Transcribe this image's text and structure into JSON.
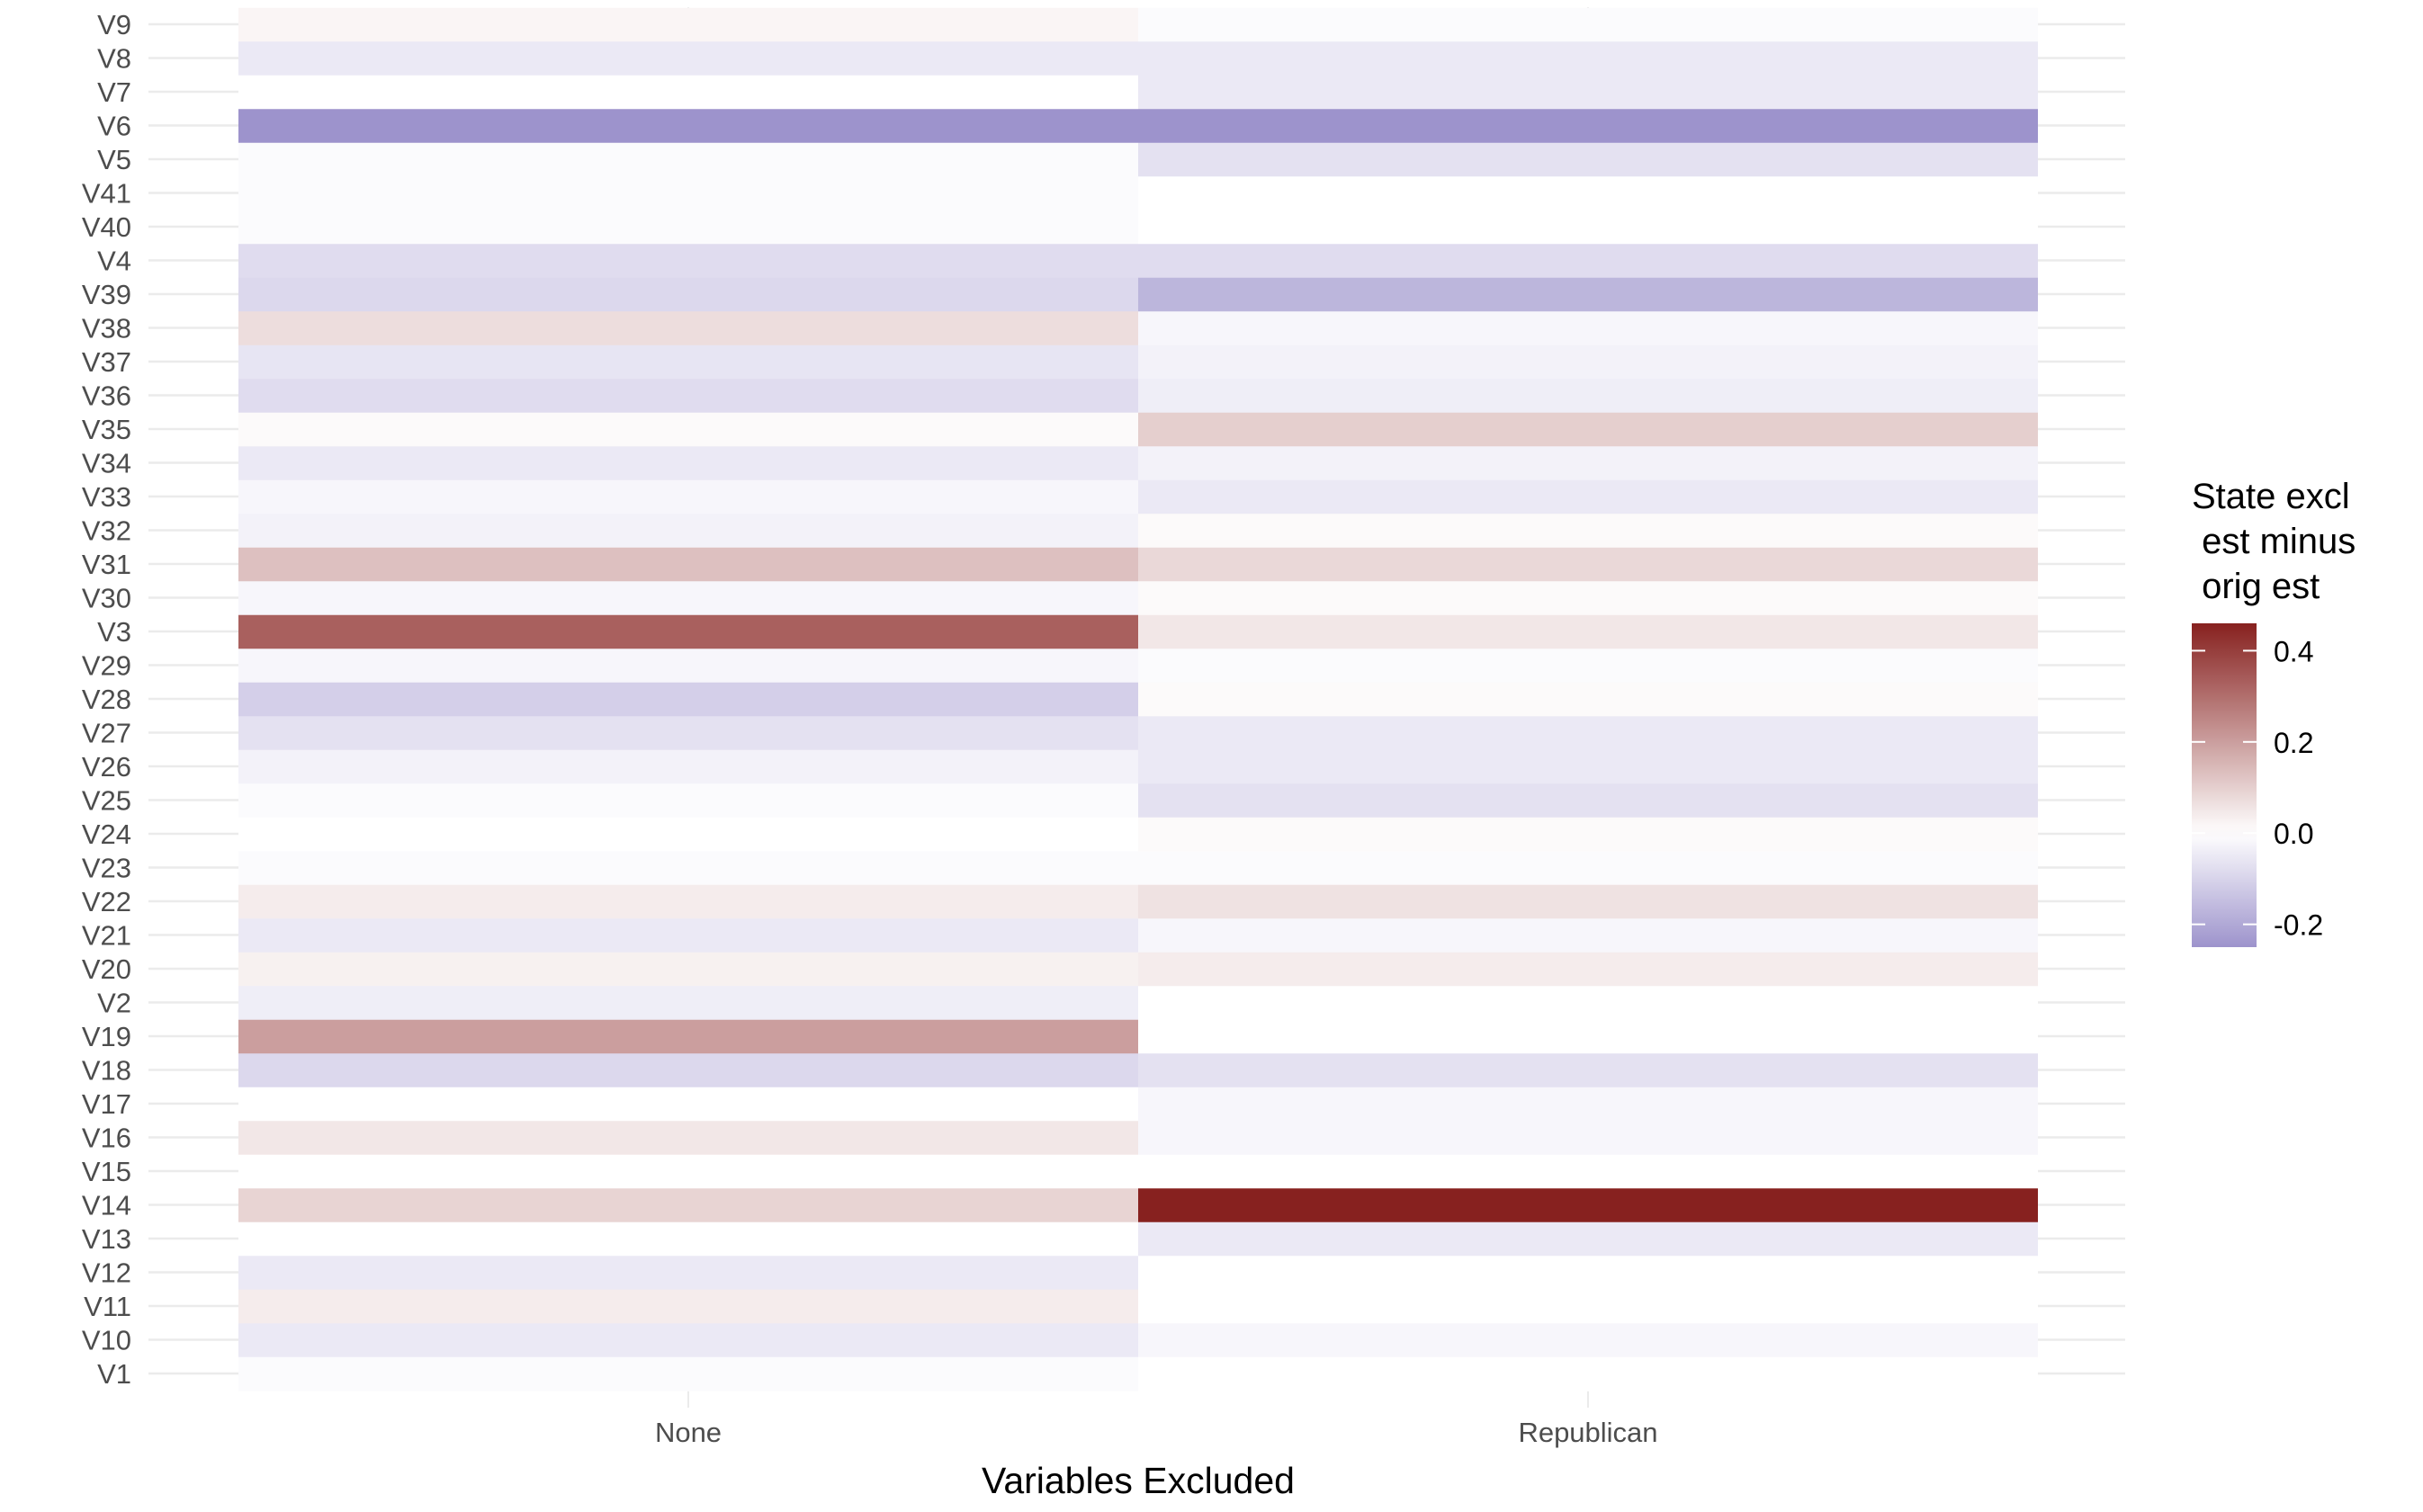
{
  "chart_data": {
    "type": "heatmap",
    "title": "",
    "xlabel": "Variables Excluded",
    "ylabel": "",
    "x_categories": [
      "None",
      "Republican"
    ],
    "y_categories": [
      "V9",
      "V8",
      "V7",
      "V6",
      "V5",
      "V41",
      "V40",
      "V4",
      "V39",
      "V38",
      "V37",
      "V36",
      "V35",
      "V34",
      "V33",
      "V32",
      "V31",
      "V30",
      "V3",
      "V29",
      "V28",
      "V27",
      "V26",
      "V25",
      "V24",
      "V23",
      "V22",
      "V21",
      "V20",
      "V2",
      "V19",
      "V18",
      "V17",
      "V16",
      "V15",
      "V14",
      "V13",
      "V12",
      "V11",
      "V10",
      "V1"
    ],
    "values": {
      "None": [
        0.02,
        -0.05,
        0.0,
        -0.27,
        -0.01,
        -0.01,
        -0.01,
        -0.08,
        -0.09,
        0.07,
        -0.06,
        -0.08,
        0.01,
        -0.05,
        -0.02,
        -0.03,
        0.13,
        -0.02,
        0.33,
        -0.02,
        -0.11,
        -0.07,
        -0.03,
        -0.01,
        0.0,
        -0.01,
        0.04,
        -0.05,
        0.03,
        -0.04,
        0.2,
        -0.09,
        0.0,
        0.05,
        0.0,
        0.09,
        0.0,
        -0.05,
        0.04,
        -0.05,
        -0.01
      ],
      "Republican": [
        -0.01,
        -0.05,
        -0.05,
        -0.25,
        -0.07,
        0.0,
        0.0,
        -0.08,
        -0.17,
        -0.02,
        -0.03,
        -0.04,
        0.1,
        -0.03,
        -0.05,
        0.01,
        0.08,
        0.01,
        0.05,
        -0.01,
        0.01,
        -0.05,
        -0.05,
        -0.07,
        0.01,
        -0.01,
        0.06,
        -0.02,
        0.04,
        0.0,
        0.0,
        -0.07,
        -0.02,
        -0.02,
        0.0,
        0.46,
        -0.05,
        0.0,
        0.0,
        -0.02,
        0.0
      ]
    },
    "legend": {
      "title_lines": [
        "State excl",
        " est minus",
        " orig est"
      ],
      "ticks": [
        0.4,
        0.2,
        0.0,
        -0.2
      ],
      "tick_labels": [
        "0.4",
        "0.2",
        "0.0",
        "-0.2"
      ],
      "range": [
        -0.25,
        0.46
      ],
      "colors": {
        "low": "#9d93cc",
        "mid": "#ffffff",
        "high": "#87211f"
      },
      "position": "right"
    },
    "grid": true
  }
}
